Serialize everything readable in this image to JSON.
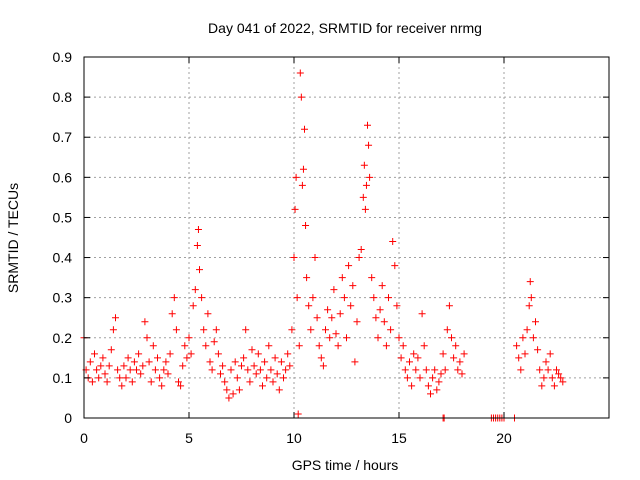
{
  "chart_data": {
    "type": "scatter",
    "title": "Day 041 of 2022, SRMTID for receiver nrmg",
    "xlabel": "GPS time / hours",
    "ylabel": "SRMTID / TECUs",
    "xlim": [
      0,
      25
    ],
    "ylim": [
      0,
      0.9
    ],
    "x_ticks": [
      "0",
      "5",
      "10",
      "15",
      "20"
    ],
    "y_ticks": [
      "0",
      "0.1",
      "0.2",
      "0.3",
      "0.4",
      "0.5",
      "0.6",
      "0.7",
      "0.8",
      "0.9"
    ],
    "grid": true,
    "marker": "+",
    "color": "#ff0000",
    "series": [
      {
        "name": "SRMTID",
        "points": [
          [
            0.0,
            0.2
          ],
          [
            0.1,
            0.12
          ],
          [
            0.2,
            0.1
          ],
          [
            0.3,
            0.14
          ],
          [
            0.4,
            0.09
          ],
          [
            0.5,
            0.16
          ],
          [
            0.6,
            0.12
          ],
          [
            0.7,
            0.1
          ],
          [
            0.8,
            0.13
          ],
          [
            0.9,
            0.15
          ],
          [
            1.0,
            0.11
          ],
          [
            1.1,
            0.09
          ],
          [
            1.2,
            0.13
          ],
          [
            1.3,
            0.17
          ],
          [
            1.4,
            0.22
          ],
          [
            1.5,
            0.25
          ],
          [
            1.6,
            0.12
          ],
          [
            1.7,
            0.1
          ],
          [
            1.8,
            0.08
          ],
          [
            1.9,
            0.13
          ],
          [
            2.0,
            0.1
          ],
          [
            2.1,
            0.15
          ],
          [
            2.2,
            0.12
          ],
          [
            2.3,
            0.09
          ],
          [
            2.4,
            0.14
          ],
          [
            2.5,
            0.12
          ],
          [
            2.6,
            0.16
          ],
          [
            2.7,
            0.11
          ],
          [
            2.8,
            0.13
          ],
          [
            2.9,
            0.24
          ],
          [
            3.0,
            0.2
          ],
          [
            3.1,
            0.14
          ],
          [
            3.2,
            0.09
          ],
          [
            3.3,
            0.18
          ],
          [
            3.4,
            0.12
          ],
          [
            3.5,
            0.15
          ],
          [
            3.6,
            0.1
          ],
          [
            3.7,
            0.08
          ],
          [
            3.8,
            0.12
          ],
          [
            3.9,
            0.14
          ],
          [
            4.0,
            0.11
          ],
          [
            4.1,
            0.16
          ],
          [
            4.2,
            0.26
          ],
          [
            4.3,
            0.3
          ],
          [
            4.4,
            0.22
          ],
          [
            4.5,
            0.09
          ],
          [
            4.6,
            0.08
          ],
          [
            4.7,
            0.13
          ],
          [
            4.8,
            0.18
          ],
          [
            4.9,
            0.15
          ],
          [
            5.0,
            0.2
          ],
          [
            5.1,
            0.16
          ],
          [
            5.2,
            0.28
          ],
          [
            5.3,
            0.32
          ],
          [
            5.4,
            0.43
          ],
          [
            5.45,
            0.47
          ],
          [
            5.5,
            0.37
          ],
          [
            5.6,
            0.3
          ],
          [
            5.7,
            0.22
          ],
          [
            5.8,
            0.18
          ],
          [
            5.9,
            0.26
          ],
          [
            6.0,
            0.14
          ],
          [
            6.1,
            0.12
          ],
          [
            6.2,
            0.19
          ],
          [
            6.3,
            0.22
          ],
          [
            6.4,
            0.16
          ],
          [
            6.5,
            0.11
          ],
          [
            6.6,
            0.13
          ],
          [
            6.7,
            0.09
          ],
          [
            6.8,
            0.07
          ],
          [
            6.9,
            0.05
          ],
          [
            7.0,
            0.12
          ],
          [
            7.1,
            0.06
          ],
          [
            7.2,
            0.14
          ],
          [
            7.3,
            0.1
          ],
          [
            7.4,
            0.07
          ],
          [
            7.5,
            0.13
          ],
          [
            7.6,
            0.15
          ],
          [
            7.7,
            0.22
          ],
          [
            7.8,
            0.12
          ],
          [
            7.9,
            0.09
          ],
          [
            8.0,
            0.17
          ],
          [
            8.1,
            0.13
          ],
          [
            8.2,
            0.11
          ],
          [
            8.3,
            0.16
          ],
          [
            8.4,
            0.12
          ],
          [
            8.5,
            0.08
          ],
          [
            8.6,
            0.14
          ],
          [
            8.7,
            0.1
          ],
          [
            8.8,
            0.18
          ],
          [
            8.9,
            0.12
          ],
          [
            9.0,
            0.09
          ],
          [
            9.1,
            0.15
          ],
          [
            9.2,
            0.11
          ],
          [
            9.3,
            0.07
          ],
          [
            9.4,
            0.14
          ],
          [
            9.5,
            0.1
          ],
          [
            9.6,
            0.12
          ],
          [
            9.7,
            0.16
          ],
          [
            9.8,
            0.13
          ],
          [
            9.9,
            0.22
          ],
          [
            10.0,
            0.4
          ],
          [
            10.05,
            0.52
          ],
          [
            10.1,
            0.6
          ],
          [
            10.15,
            0.3
          ],
          [
            10.2,
            0.01
          ],
          [
            10.25,
            0.18
          ],
          [
            10.3,
            0.86
          ],
          [
            10.35,
            0.8
          ],
          [
            10.4,
            0.58
          ],
          [
            10.45,
            0.62
          ],
          [
            10.5,
            0.72
          ],
          [
            10.55,
            0.48
          ],
          [
            10.6,
            0.35
          ],
          [
            10.7,
            0.28
          ],
          [
            10.8,
            0.22
          ],
          [
            10.9,
            0.3
          ],
          [
            11.0,
            0.4
          ],
          [
            11.1,
            0.25
          ],
          [
            11.2,
            0.18
          ],
          [
            11.3,
            0.15
          ],
          [
            11.4,
            0.13
          ],
          [
            11.5,
            0.22
          ],
          [
            11.6,
            0.27
          ],
          [
            11.7,
            0.2
          ],
          [
            11.8,
            0.25
          ],
          [
            11.9,
            0.32
          ],
          [
            12.0,
            0.21
          ],
          [
            12.1,
            0.18
          ],
          [
            12.2,
            0.26
          ],
          [
            12.3,
            0.35
          ],
          [
            12.4,
            0.3
          ],
          [
            12.5,
            0.2
          ],
          [
            12.6,
            0.38
          ],
          [
            12.7,
            0.28
          ],
          [
            12.8,
            0.33
          ],
          [
            12.9,
            0.14
          ],
          [
            13.0,
            0.24
          ],
          [
            13.1,
            0.4
          ],
          [
            13.2,
            0.42
          ],
          [
            13.3,
            0.55
          ],
          [
            13.35,
            0.63
          ],
          [
            13.4,
            0.52
          ],
          [
            13.45,
            0.58
          ],
          [
            13.5,
            0.73
          ],
          [
            13.55,
            0.68
          ],
          [
            13.6,
            0.6
          ],
          [
            13.7,
            0.35
          ],
          [
            13.8,
            0.3
          ],
          [
            13.9,
            0.25
          ],
          [
            14.0,
            0.2
          ],
          [
            14.1,
            0.27
          ],
          [
            14.2,
            0.33
          ],
          [
            14.3,
            0.24
          ],
          [
            14.4,
            0.18
          ],
          [
            14.5,
            0.3
          ],
          [
            14.6,
            0.22
          ],
          [
            14.7,
            0.44
          ],
          [
            14.8,
            0.38
          ],
          [
            14.9,
            0.28
          ],
          [
            15.0,
            0.2
          ],
          [
            15.1,
            0.15
          ],
          [
            15.2,
            0.18
          ],
          [
            15.3,
            0.12
          ],
          [
            15.4,
            0.1
          ],
          [
            15.5,
            0.14
          ],
          [
            15.6,
            0.08
          ],
          [
            15.7,
            0.16
          ],
          [
            15.8,
            0.12
          ],
          [
            15.9,
            0.15
          ],
          [
            16.0,
            0.1
          ],
          [
            16.1,
            0.26
          ],
          [
            16.2,
            0.18
          ],
          [
            16.3,
            0.12
          ],
          [
            16.4,
            0.08
          ],
          [
            16.5,
            0.06
          ],
          [
            16.6,
            0.1
          ],
          [
            16.7,
            0.12
          ],
          [
            16.8,
            0.07
          ],
          [
            16.9,
            0.09
          ],
          [
            17.0,
            0.11
          ],
          [
            17.1,
            0.16
          ],
          [
            17.2,
            0.12
          ],
          [
            17.3,
            0.22
          ],
          [
            17.4,
            0.28
          ],
          [
            17.5,
            0.2
          ],
          [
            17.6,
            0.15
          ],
          [
            17.7,
            0.18
          ],
          [
            17.8,
            0.12
          ],
          [
            17.9,
            0.14
          ],
          [
            18.0,
            0.11
          ],
          [
            18.1,
            0.16
          ],
          [
            17.1,
            0.0
          ],
          [
            17.15,
            0.0
          ],
          [
            19.4,
            0.0
          ],
          [
            19.5,
            0.0
          ],
          [
            19.6,
            0.0
          ],
          [
            19.7,
            0.0
          ],
          [
            19.8,
            0.0
          ],
          [
            19.9,
            0.0
          ],
          [
            20.0,
            0.0
          ],
          [
            20.5,
            0.0
          ],
          [
            20.6,
            0.18
          ],
          [
            20.7,
            0.15
          ],
          [
            20.8,
            0.12
          ],
          [
            20.9,
            0.2
          ],
          [
            21.0,
            0.16
          ],
          [
            21.1,
            0.22
          ],
          [
            21.2,
            0.28
          ],
          [
            21.25,
            0.34
          ],
          [
            21.3,
            0.3
          ],
          [
            21.4,
            0.2
          ],
          [
            21.5,
            0.24
          ],
          [
            21.6,
            0.17
          ],
          [
            21.7,
            0.12
          ],
          [
            21.8,
            0.08
          ],
          [
            21.9,
            0.1
          ],
          [
            22.0,
            0.14
          ],
          [
            22.1,
            0.12
          ],
          [
            22.2,
            0.16
          ],
          [
            22.3,
            0.1
          ],
          [
            22.4,
            0.08
          ],
          [
            22.5,
            0.12
          ],
          [
            22.6,
            0.11
          ],
          [
            22.7,
            0.1
          ],
          [
            22.8,
            0.09
          ]
        ]
      }
    ]
  }
}
